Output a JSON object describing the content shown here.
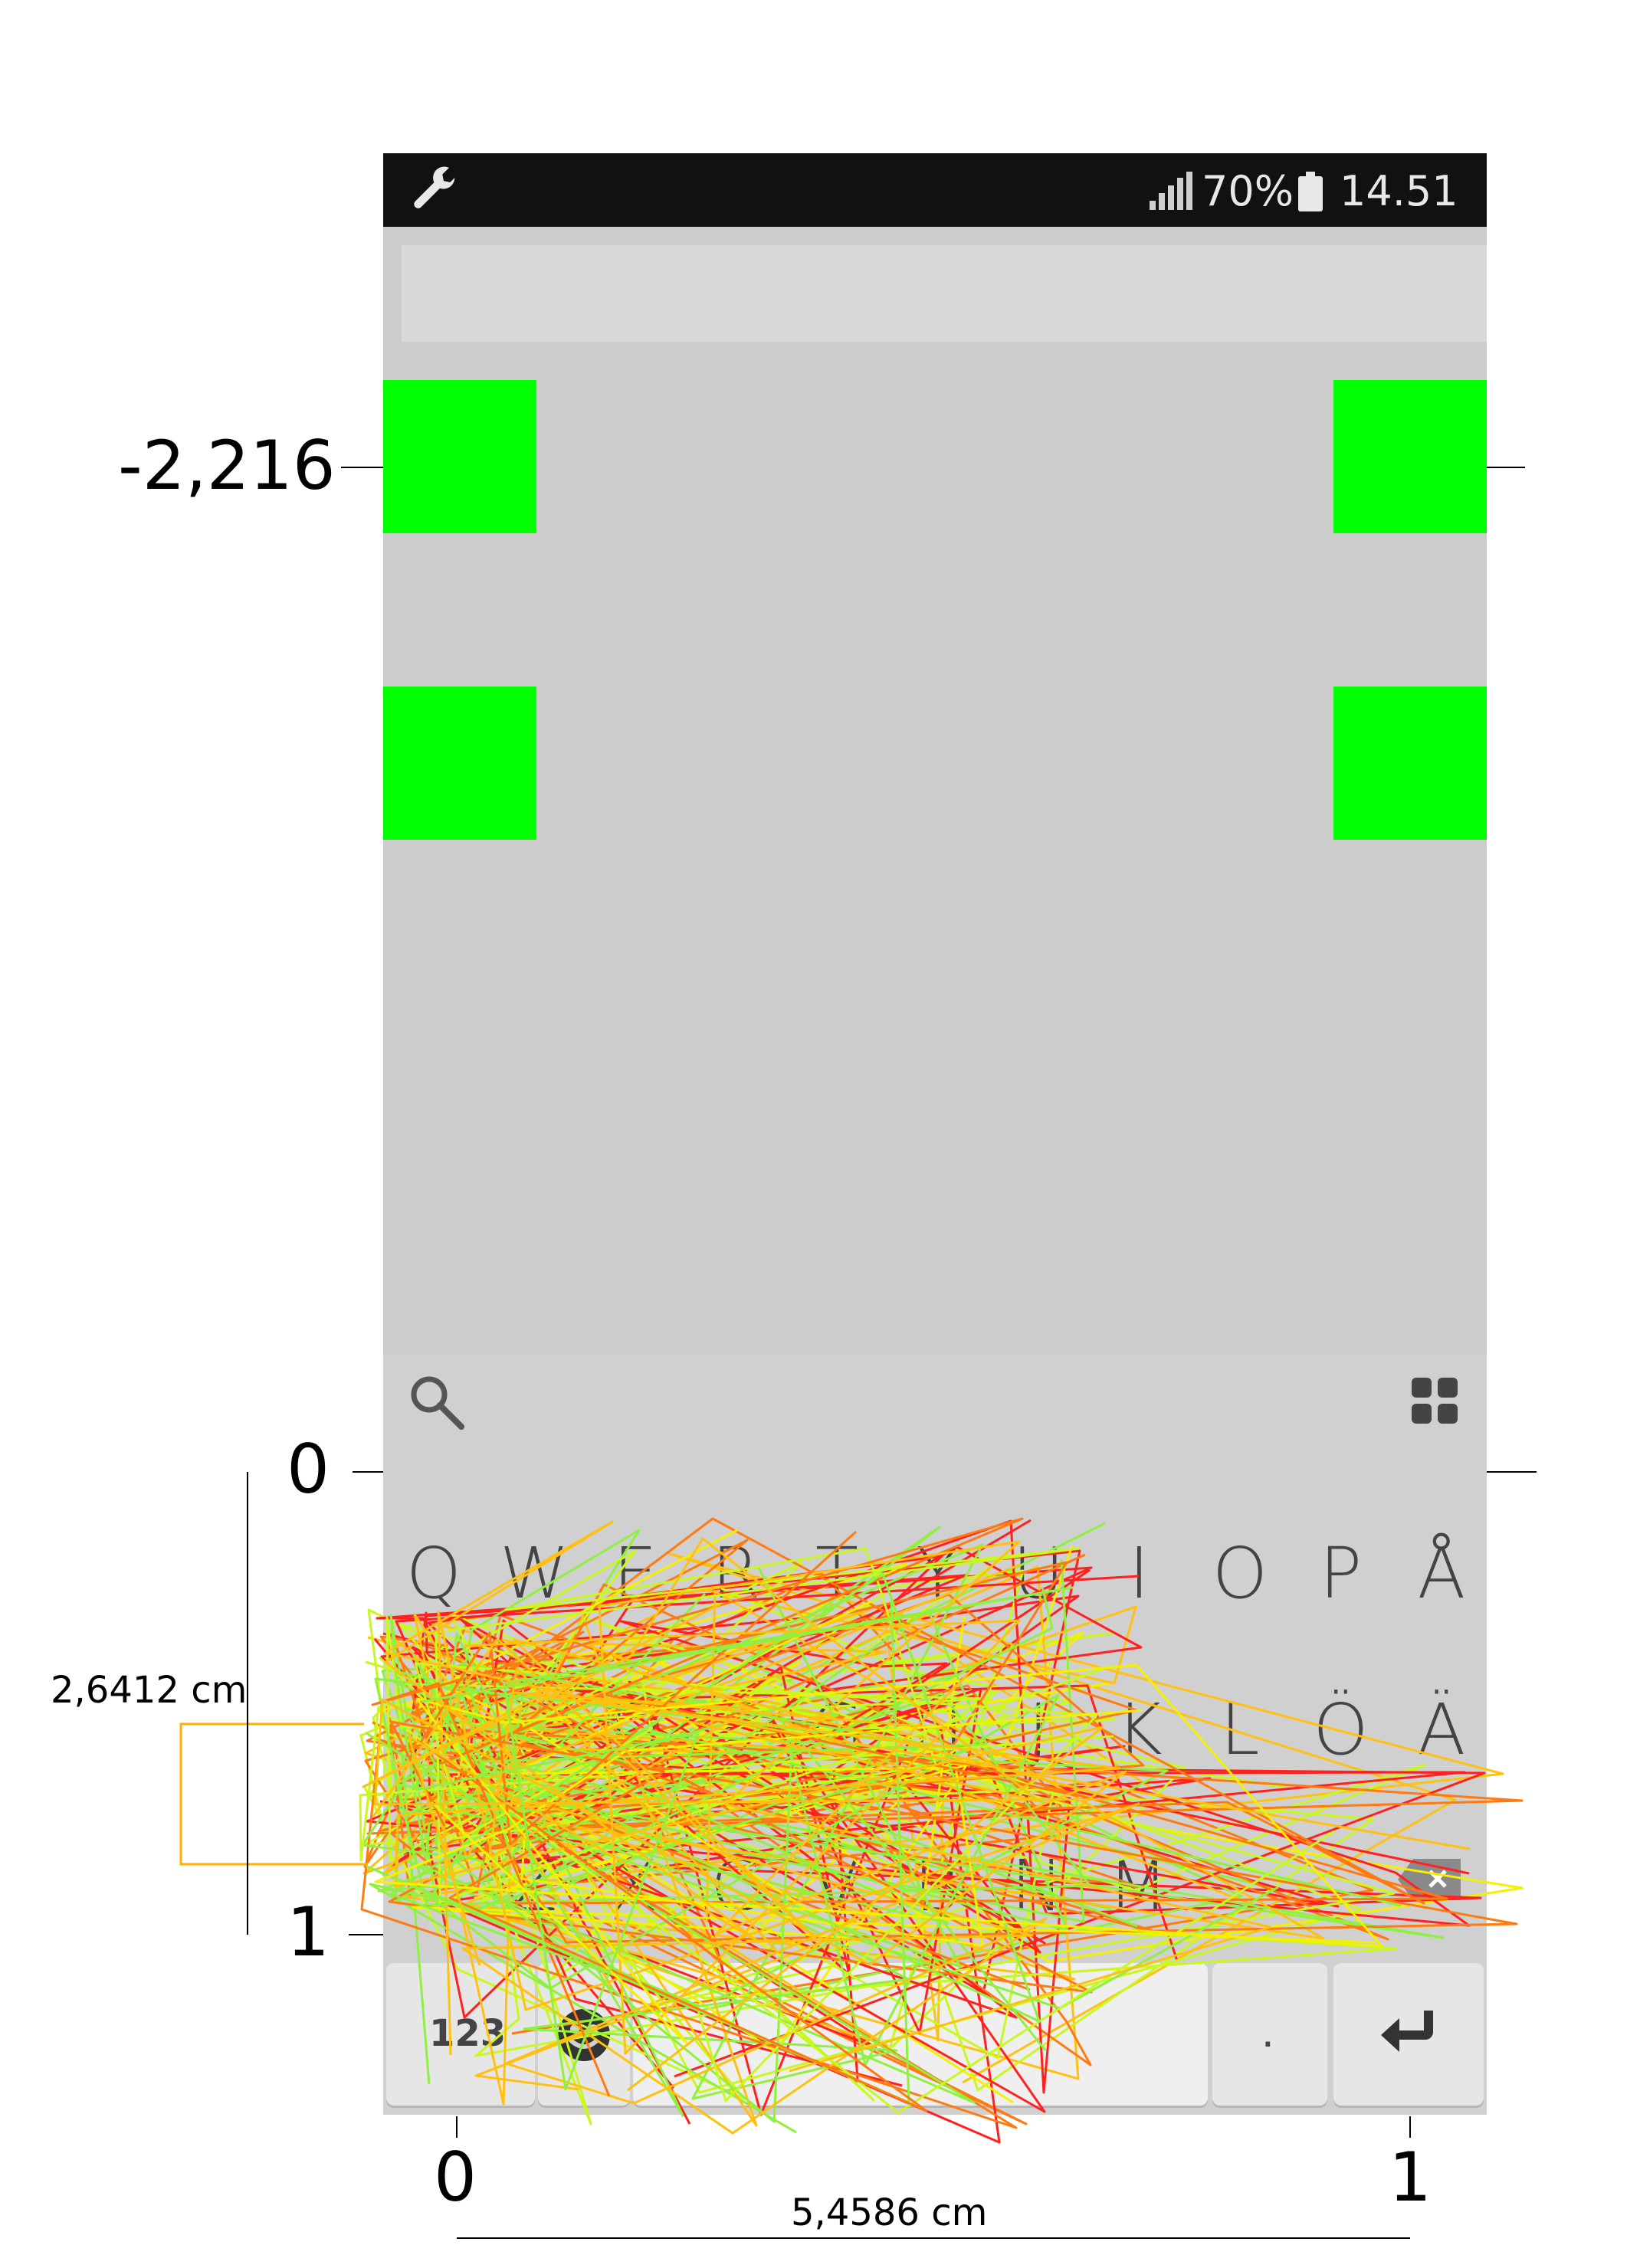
{
  "status_bar": {
    "battery_percent": "70%",
    "time": "14.51",
    "left_icon": "wrench-icon",
    "right_icons": [
      "signal-icon",
      "battery-icon"
    ]
  },
  "targets": {
    "color": "#00ff00"
  },
  "keyboard": {
    "search_icon": "search-icon",
    "menu_icon": "grid-icon",
    "row1": [
      "Q",
      "W",
      "E",
      "R",
      "T",
      "Y",
      "U",
      "I",
      "O",
      "P",
      "Å"
    ],
    "row2": [
      "A",
      "S",
      "D",
      "F",
      "G",
      "H",
      "J",
      "K",
      "L",
      "Ö",
      "Ä"
    ],
    "row3": [
      "Z",
      "X",
      "C",
      "V",
      "B",
      "N",
      "M"
    ],
    "numbers_key": "123",
    "period_key": ".",
    "enter_icon": "enter-icon",
    "backspace_icon": "backspace-icon",
    "emoji_icon": "emoji-icon"
  },
  "annotations": {
    "y_label_top": "-2,216",
    "y_label_zero": "0",
    "y_label_one": "1",
    "x_label_zero": "0",
    "x_label_one": "1",
    "height_label": "2,6412 cm",
    "width_label": "5,4586 cm"
  },
  "trace_colors": [
    "#ff2020",
    "#ff7a10",
    "#ffc010",
    "#f4f000",
    "#c8f820",
    "#90f040"
  ]
}
